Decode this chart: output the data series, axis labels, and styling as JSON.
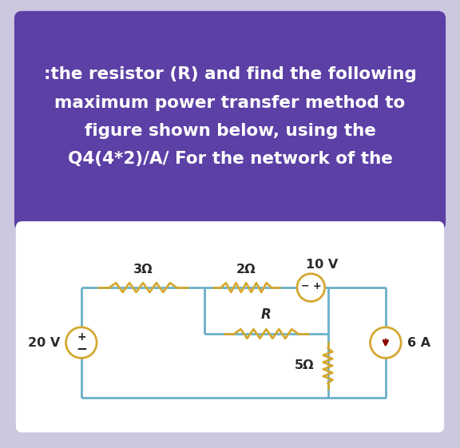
{
  "title_lines": [
    "Q4(4*2)/A/ For the network of the",
    "figure shown below, using the",
    "maximum power transfer method to",
    ":the resistor (R) and find the following"
  ],
  "title_bg": "#5c40a5",
  "title_fg": "#ffffff",
  "outer_bg": "#cbc8e0",
  "circuit_bg": "#f5f5f8",
  "wire_color": "#6ab0c8",
  "resistor_color": "#d4a830",
  "source_color": "#d4a830",
  "text_color": "#2a2a2a",
  "label_20v": "20 V",
  "label_3ohm": "3Ω",
  "label_2ohm": "2Ω",
  "label_R": "R",
  "label_5ohm": "5Ω",
  "label_10v": "10 V",
  "label_6a": "6 A",
  "title_fontsize": 15.5,
  "label_fontsize": 11.5
}
